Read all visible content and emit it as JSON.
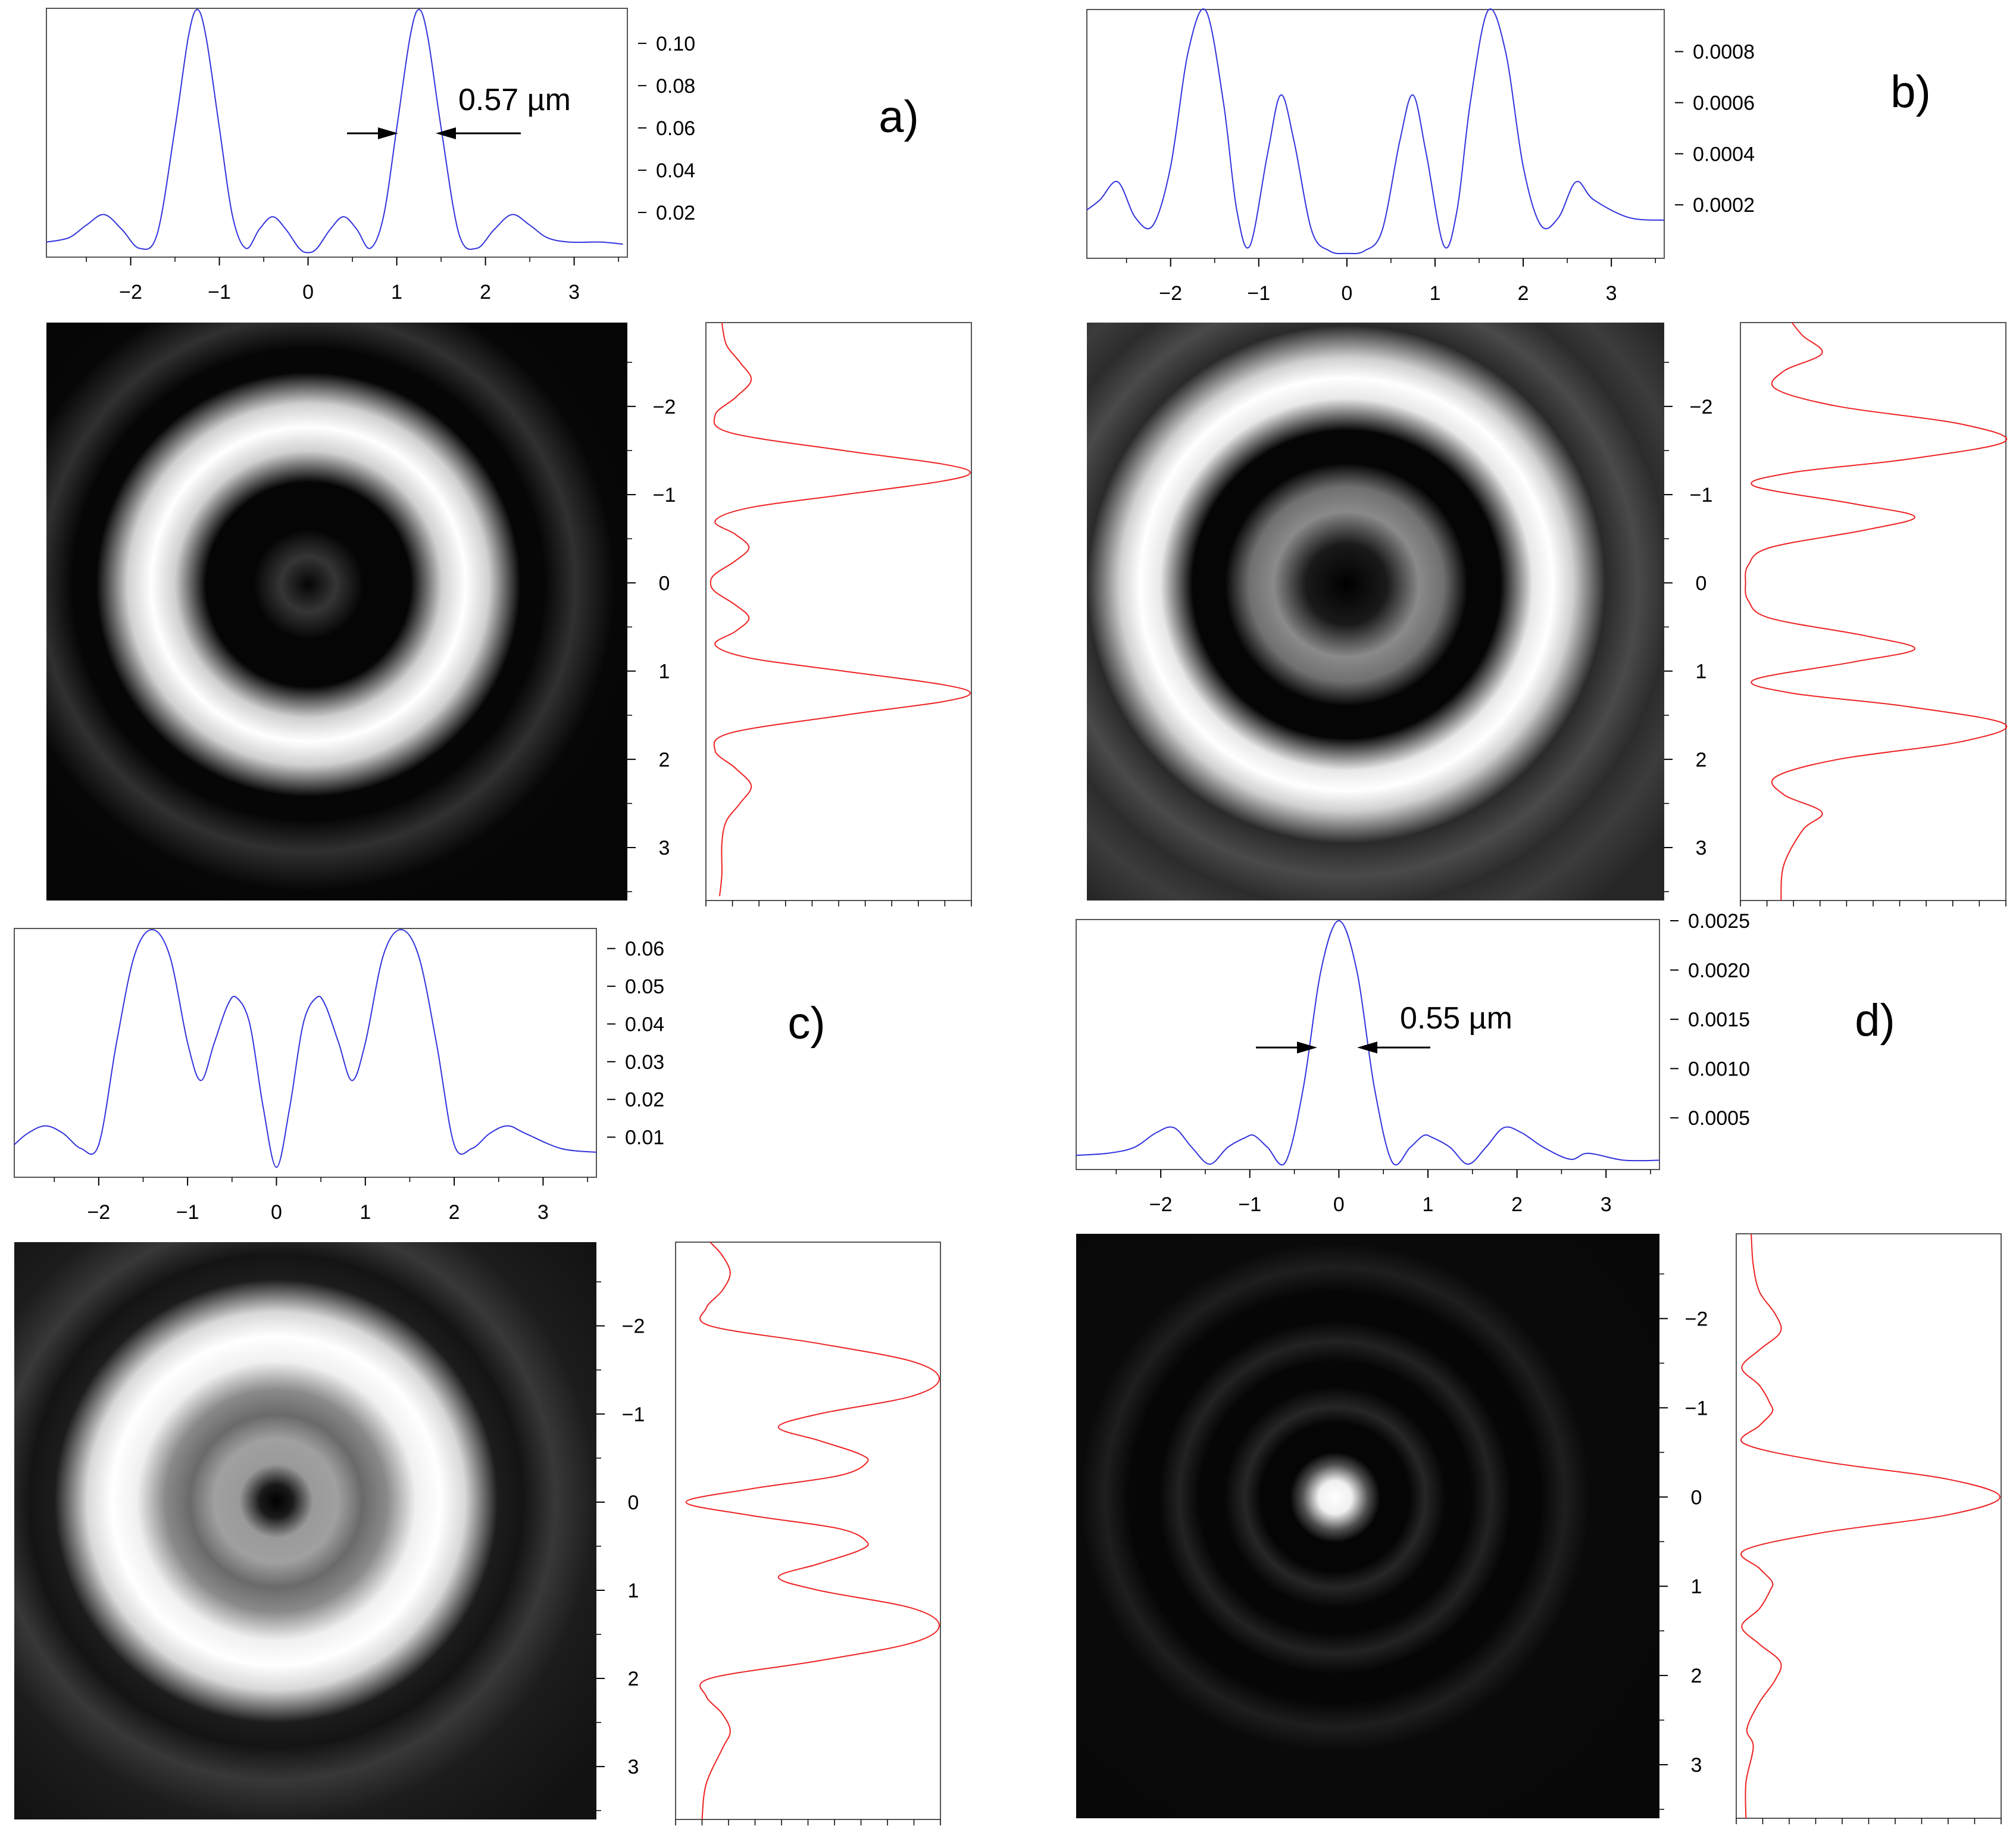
{
  "figure": {
    "colors": {
      "x_profile": "#3333dd",
      "y_profile": "#ee2222",
      "frame": "#555555",
      "text": "#000000"
    },
    "x_axis_ticks": [
      "−2",
      "−1",
      "0",
      "1",
      "2",
      "3"
    ],
    "y_axis_ticks": [
      "−2",
      "−1",
      "0",
      "1",
      "2",
      "3"
    ]
  },
  "chart_data": [
    {
      "id": "a",
      "label": "a)",
      "type": "line",
      "intensity_image": "ring_pattern",
      "x_profile": {
        "x": [
          -2.95,
          -2.7,
          -2.5,
          -2.3,
          -2.1,
          -1.9,
          -1.7,
          -1.5,
          -1.35,
          -1.25,
          -1.15,
          -1.0,
          -0.85,
          -0.7,
          -0.55,
          -0.4,
          -0.25,
          -0.1,
          0.0,
          0.1,
          0.25,
          0.4,
          0.55,
          0.7,
          0.85,
          1.0,
          1.15,
          1.25,
          1.35,
          1.5,
          1.7,
          1.9,
          2.1,
          2.3,
          2.5,
          2.7,
          2.95,
          3.3,
          3.55
        ],
        "y": [
          0.006,
          0.008,
          0.014,
          0.019,
          0.012,
          0.003,
          0.01,
          0.06,
          0.103,
          0.116,
          0.103,
          0.06,
          0.018,
          0.003,
          0.012,
          0.018,
          0.012,
          0.003,
          0.001,
          0.003,
          0.012,
          0.018,
          0.012,
          0.003,
          0.018,
          0.06,
          0.103,
          0.116,
          0.103,
          0.06,
          0.01,
          0.003,
          0.012,
          0.019,
          0.014,
          0.008,
          0.006,
          0.006,
          0.005
        ],
        "yticks": [
          "0.02",
          "0.04",
          "0.06",
          "0.08",
          "0.10"
        ],
        "ylim": [
          0.0,
          0.116
        ]
      },
      "y_profile_shape": "same_as_x_profile",
      "annotation": {
        "text": "0.57 µm",
        "kind": "fwhm_arrows"
      }
    },
    {
      "id": "b",
      "label": "b)",
      "type": "line",
      "intensity_image": "ring_pattern",
      "x_profile": {
        "x": [
          -2.95,
          -2.8,
          -2.6,
          -2.4,
          -2.2,
          -2.0,
          -1.8,
          -1.6,
          -1.4,
          -1.25,
          -1.1,
          -0.9,
          -0.75,
          -0.6,
          -0.4,
          -0.2,
          0.0,
          0.2,
          0.4,
          0.6,
          0.75,
          0.9,
          1.1,
          1.25,
          1.4,
          1.6,
          1.8,
          2.0,
          2.2,
          2.4,
          2.6,
          2.8,
          3.2,
          3.6
        ],
        "y": [
          0.00018,
          0.00022,
          0.00029,
          0.00015,
          0.00012,
          0.00035,
          0.0008,
          0.00096,
          0.0006,
          0.00018,
          4e-05,
          0.0004,
          0.00063,
          0.00045,
          0.0001,
          2e-05,
          1e-05,
          2e-05,
          0.0001,
          0.00045,
          0.00063,
          0.0004,
          4e-05,
          0.00018,
          0.0006,
          0.00096,
          0.0008,
          0.00035,
          0.00012,
          0.00015,
          0.00029,
          0.00022,
          0.00015,
          0.00014
        ],
        "yticks": [
          "0.0002",
          "0.0004",
          "0.0006",
          "0.0008"
        ],
        "ylim": [
          0.0,
          0.00096
        ]
      },
      "y_profile_shape": "same_as_x_profile"
    },
    {
      "id": "c",
      "label": "c)",
      "type": "line",
      "intensity_image": "ring_pattern",
      "x_profile": {
        "x": [
          -2.95,
          -2.8,
          -2.6,
          -2.4,
          -2.2,
          -2.0,
          -1.8,
          -1.6,
          -1.4,
          -1.2,
          -1.0,
          -0.85,
          -0.7,
          -0.55,
          -0.45,
          -0.3,
          -0.15,
          0.0,
          0.15,
          0.3,
          0.45,
          0.55,
          0.7,
          0.85,
          1.0,
          1.2,
          1.4,
          1.6,
          1.8,
          2.0,
          2.2,
          2.4,
          2.6,
          2.8,
          3.2,
          3.6
        ],
        "y": [
          0.008,
          0.011,
          0.013,
          0.011,
          0.007,
          0.008,
          0.035,
          0.058,
          0.065,
          0.058,
          0.035,
          0.025,
          0.035,
          0.045,
          0.047,
          0.04,
          0.018,
          0.002,
          0.018,
          0.04,
          0.047,
          0.045,
          0.035,
          0.025,
          0.035,
          0.058,
          0.065,
          0.058,
          0.035,
          0.008,
          0.007,
          0.011,
          0.013,
          0.011,
          0.007,
          0.006
        ],
        "yticks": [
          "0.01",
          "0.02",
          "0.03",
          "0.04",
          "0.05",
          "0.06"
        ],
        "ylim": [
          0.0,
          0.065
        ]
      },
      "y_profile_shape": "same_as_x_profile"
    },
    {
      "id": "d",
      "label": "d)",
      "type": "line",
      "intensity_image": "central_spot",
      "x_profile": {
        "x": [
          -2.95,
          -2.6,
          -2.3,
          -2.05,
          -1.85,
          -1.65,
          -1.45,
          -1.25,
          -1.05,
          -0.95,
          -0.8,
          -0.6,
          -0.4,
          -0.2,
          0.0,
          0.2,
          0.4,
          0.6,
          0.8,
          0.95,
          1.05,
          1.25,
          1.45,
          1.65,
          1.85,
          2.05,
          2.3,
          2.6,
          2.8,
          3.2,
          3.6
        ],
        "y": [
          0.00012,
          0.00014,
          0.0002,
          0.00035,
          0.0004,
          0.0002,
          3e-05,
          0.0002,
          0.0003,
          0.00032,
          0.0002,
          5e-05,
          0.0008,
          0.002,
          0.0025,
          0.002,
          0.0008,
          5e-05,
          0.0002,
          0.00032,
          0.0003,
          0.0002,
          3e-05,
          0.0002,
          0.0004,
          0.00035,
          0.0002,
          8e-05,
          0.00014,
          7e-05,
          7e-05
        ],
        "yticks": [
          "0.0005",
          "0.0010",
          "0.0015",
          "0.0020",
          "0.0025"
        ],
        "ylim": [
          0.0,
          0.0025
        ]
      },
      "y_profile_shape": "same_as_x_profile",
      "annotation": {
        "text": "0.55 µm",
        "kind": "fwhm_arrows"
      }
    }
  ]
}
